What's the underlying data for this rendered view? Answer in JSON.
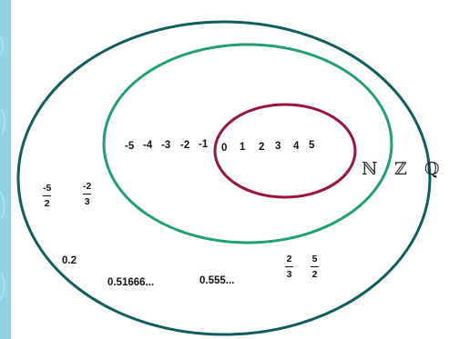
{
  "colors": {
    "background": "#8fd3e8",
    "panel": "#ffffff",
    "outer_ellipse": "#0d5e5c",
    "middle_ellipse": "#1f9e7a",
    "inner_ellipse": "#9c1043"
  },
  "sets": {
    "natural": {
      "label": "ℕ",
      "members": [
        "0",
        "1",
        "2",
        "3",
        "4",
        "5"
      ]
    },
    "integer": {
      "label": "ℤ",
      "members": [
        "-5",
        "-4",
        "-3",
        "-2",
        "-1"
      ]
    },
    "rational": {
      "label": "ℚ",
      "fractions": [
        {
          "num": "-5",
          "den": "2"
        },
        {
          "num": "-2",
          "den": "3"
        },
        {
          "num": "2",
          "den": "3"
        },
        {
          "num": "5",
          "den": "2"
        }
      ],
      "decimals": [
        "0.2",
        "0.51666...",
        "0.555..."
      ]
    }
  }
}
